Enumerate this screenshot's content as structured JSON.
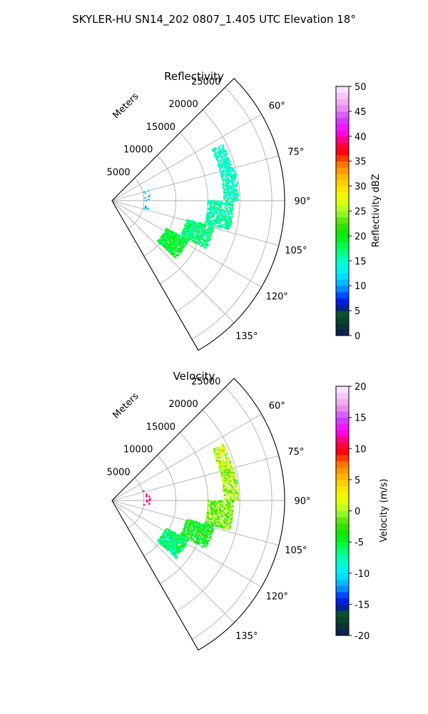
{
  "figure": {
    "suptitle": "SKYLER-HU  SN14_202  0807_1.405 UTC Elevation 18°"
  },
  "panels": [
    {
      "title": "Reflectivity",
      "range_label": "Meters",
      "range_ticks": [
        "5000",
        "10000",
        "15000",
        "20000",
        "25000"
      ],
      "azimuth_ticks": [
        "60°",
        "75°",
        "90°",
        "105°",
        "120°",
        "135°"
      ],
      "colorbar": {
        "label": "Reflectivity dBZ",
        "ticks": [
          "0",
          "5",
          "10",
          "15",
          "20",
          "25",
          "30",
          "35",
          "40",
          "45",
          "50"
        ]
      }
    },
    {
      "title": "Velocity",
      "range_label": "Meters",
      "range_ticks": [
        "5000",
        "10000",
        "15000",
        "20000",
        "25000"
      ],
      "azimuth_ticks": [
        "60°",
        "75°",
        "90°",
        "105°",
        "120°",
        "135°"
      ],
      "colorbar": {
        "label": "Velocity (m/s)",
        "ticks": [
          "-20",
          "-15",
          "-10",
          "-5",
          "0",
          "5",
          "10",
          "15",
          "20"
        ]
      }
    }
  ],
  "chart_data": [
    {
      "type": "heatmap",
      "projection": "polar-sector",
      "title": "Reflectivity",
      "theta_range_deg": [
        45,
        150
      ],
      "r_range_m": [
        0,
        27000
      ],
      "r_ticks": [
        5000,
        10000,
        15000,
        20000,
        25000
      ],
      "theta_ticks_deg": [
        60,
        75,
        90,
        105,
        120,
        135
      ],
      "grid": true,
      "colorbar": {
        "min": 0,
        "max": 50,
        "label": "Reflectivity dBZ"
      },
      "echo_regions": [
        {
          "theta_deg": [
            63,
            74
          ],
          "r_m": [
            17500,
            19500
          ],
          "value": 15
        },
        {
          "theta_deg": [
            74,
            90
          ],
          "r_m": [
            17500,
            19800
          ],
          "value": 15
        },
        {
          "theta_deg": [
            90,
            104
          ],
          "r_m": [
            15000,
            19000
          ],
          "value": 16
        },
        {
          "theta_deg": [
            104,
            117
          ],
          "r_m": [
            12000,
            16500
          ],
          "value": 17
        },
        {
          "theta_deg": [
            117,
            132
          ],
          "r_m": [
            9500,
            13500
          ],
          "value": 19
        },
        {
          "theta_deg": [
            72,
            105
          ],
          "r_m": [
            5000,
            6000
          ],
          "value": 11
        }
      ]
    },
    {
      "type": "heatmap",
      "projection": "polar-sector",
      "title": "Velocity",
      "theta_range_deg": [
        45,
        150
      ],
      "r_range_m": [
        0,
        27000
      ],
      "r_ticks": [
        5000,
        10000,
        15000,
        20000,
        25000
      ],
      "theta_ticks_deg": [
        60,
        75,
        90,
        105,
        120,
        135
      ],
      "grid": true,
      "colorbar": {
        "min": -20,
        "max": 20,
        "label": "Velocity (m/s)"
      },
      "echo_regions": [
        {
          "theta_deg": [
            63,
            74
          ],
          "r_m": [
            17500,
            19500
          ],
          "value": 1
        },
        {
          "theta_deg": [
            74,
            90
          ],
          "r_m": [
            17500,
            19800
          ],
          "value": 0
        },
        {
          "theta_deg": [
            90,
            104
          ],
          "r_m": [
            15000,
            19000
          ],
          "value": -1
        },
        {
          "theta_deg": [
            104,
            117
          ],
          "r_m": [
            12000,
            16500
          ],
          "value": -4
        },
        {
          "theta_deg": [
            117,
            132
          ],
          "r_m": [
            9500,
            13500
          ],
          "value": -6
        },
        {
          "theta_deg": [
            72,
            105
          ],
          "r_m": [
            5000,
            6000
          ],
          "value": 11
        }
      ]
    }
  ]
}
